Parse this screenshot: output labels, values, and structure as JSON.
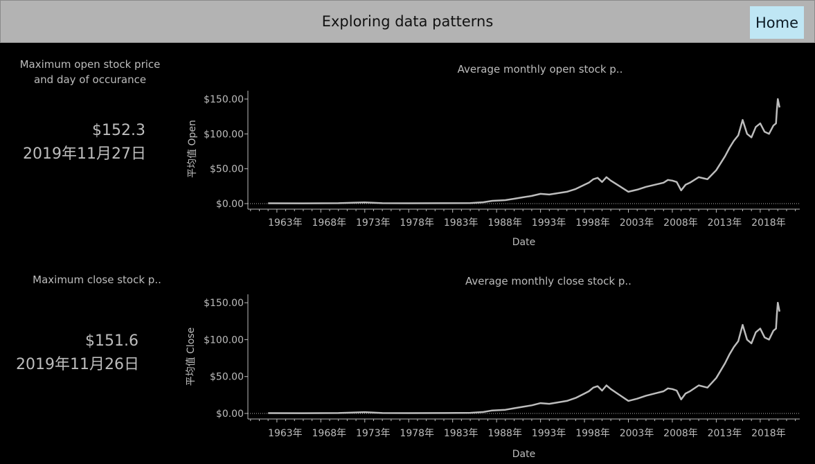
{
  "header": {
    "title": "Exploring data patterns",
    "home_label": "Home"
  },
  "kpis": [
    {
      "title_line1": "Maximum open stock price",
      "title_line2": "and day of occurance",
      "value": "$152.3",
      "date": "2019年11月27日"
    },
    {
      "title_line1": "Maximum close stock p..",
      "value": "$151.6",
      "date": "2019年11月26日"
    }
  ],
  "chart_data": [
    {
      "type": "line",
      "title": "Average monthly open stock p..",
      "xlabel": "Date",
      "ylabel": "平均值 Open",
      "x_ticks": [
        "1963年",
        "1968年",
        "1973年",
        "1978年",
        "1983年",
        "1988年",
        "1993年",
        "1998年",
        "2003年",
        "2008年",
        "2013年",
        "2018年"
      ],
      "y_ticks": [
        "$0.00",
        "$50.00",
        "$100.00",
        "$150.00"
      ],
      "ylim": [
        0,
        152
      ],
      "xlim": [
        1959.7,
        2022.5
      ],
      "line_color": "#bdbdbd",
      "series": [
        {
          "x": [
            1962.0,
            1966.0,
            1970.0,
            1973.0,
            1975.0,
            1978.0,
            1982.0,
            1985.0,
            1986.5,
            1987.5,
            1989.0,
            1990.0,
            1991.0,
            1992.0,
            1993.0,
            1994.0,
            1995.0,
            1996.0,
            1997.0,
            1998.0,
            1998.5,
            1999.0,
            1999.5,
            2000.0,
            2000.5,
            2001.0,
            2002.0,
            2003.0,
            2004.0,
            2005.0,
            2006.0,
            2007.0,
            2007.5,
            2008.0,
            2008.5,
            2009.0,
            2009.5,
            2010.0,
            2011.0,
            2012.0,
            2013.0,
            2014.0,
            2014.5,
            2015.0,
            2015.5,
            2016.0,
            2016.5,
            2017.0,
            2017.5,
            2018.0,
            2018.5,
            2019.0,
            2019.5,
            2019.8,
            2019.9,
            2020.0,
            2020.2
          ],
          "y": [
            0.5,
            0.4,
            0.6,
            1.8,
            0.6,
            0.5,
            0.6,
            0.8,
            2,
            4,
            5,
            7,
            9,
            11,
            14,
            13,
            15,
            17,
            21,
            27,
            30,
            35,
            37,
            31,
            38,
            33,
            25,
            17,
            20,
            24,
            27,
            30,
            34,
            33,
            31,
            19,
            27,
            30,
            38,
            35,
            48,
            68,
            80,
            90,
            98,
            120,
            100,
            95,
            110,
            115,
            103,
            100,
            112,
            115,
            135,
            150,
            138
          ]
        }
      ]
    },
    {
      "type": "line",
      "title": "Average monthly close stock p..",
      "xlabel": "Date",
      "ylabel": "平均值 Close",
      "x_ticks": [
        "1963年",
        "1968年",
        "1973年",
        "1978年",
        "1983年",
        "1988年",
        "1993年",
        "1998年",
        "2003年",
        "2008年",
        "2013年",
        "2018年"
      ],
      "y_ticks": [
        "$0.00",
        "$50.00",
        "$100.00",
        "$150.00"
      ],
      "ylim": [
        0,
        152
      ],
      "xlim": [
        1959.7,
        2022.5
      ],
      "line_color": "#bdbdbd",
      "series": [
        {
          "x": [
            1962.0,
            1966.0,
            1970.0,
            1973.0,
            1975.0,
            1978.0,
            1982.0,
            1985.0,
            1986.5,
            1987.5,
            1989.0,
            1990.0,
            1991.0,
            1992.0,
            1993.0,
            1994.0,
            1995.0,
            1996.0,
            1997.0,
            1998.0,
            1998.5,
            1999.0,
            1999.5,
            2000.0,
            2000.5,
            2001.0,
            2002.0,
            2003.0,
            2004.0,
            2005.0,
            2006.0,
            2007.0,
            2007.5,
            2008.0,
            2008.5,
            2009.0,
            2009.5,
            2010.0,
            2011.0,
            2012.0,
            2013.0,
            2014.0,
            2014.5,
            2015.0,
            2015.5,
            2016.0,
            2016.5,
            2017.0,
            2017.5,
            2018.0,
            2018.5,
            2019.0,
            2019.5,
            2019.8,
            2019.9,
            2020.0,
            2020.2
          ],
          "y": [
            0.5,
            0.4,
            0.6,
            1.8,
            0.6,
            0.5,
            0.6,
            0.8,
            2,
            4,
            5,
            7,
            9,
            11,
            14,
            13,
            15,
            17,
            21,
            27,
            30,
            35,
            37,
            31,
            38,
            33,
            25,
            17,
            20,
            24,
            27,
            30,
            34,
            33,
            31,
            19,
            27,
            30,
            38,
            35,
            48,
            68,
            80,
            90,
            98,
            120,
            100,
            95,
            110,
            115,
            103,
            100,
            112,
            115,
            135,
            150,
            138
          ]
        }
      ]
    }
  ]
}
